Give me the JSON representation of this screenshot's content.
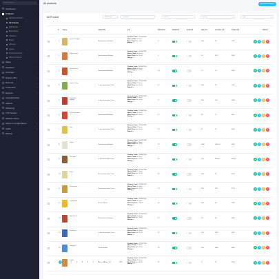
{
  "sidebar": {
    "search_placeholder": "Search in menu...",
    "items": [
      {
        "label": "Dashboard",
        "arrow": ""
      },
      {
        "label": "Products",
        "arrow": "›",
        "active": true
      },
      {
        "label": "Sales",
        "arrow": "›"
      },
      {
        "label": "Suppliers",
        "arrow": "›"
      },
      {
        "label": "Purchase",
        "arrow": "›"
      },
      {
        "label": "Delivery Boy",
        "arrow": "›"
      },
      {
        "label": "Refunds",
        "arrow": "›"
      },
      {
        "label": "Customers",
        "arrow": "›"
      },
      {
        "label": "Reports",
        "arrow": "›"
      },
      {
        "label": "Uploaded Files",
        "arrow": ""
      },
      {
        "label": "Addons",
        "arrow": ""
      },
      {
        "label": "Marketing",
        "arrow": "›"
      },
      {
        "label": "OTP System",
        "arrow": "›"
      },
      {
        "label": "Website Setup",
        "arrow": "›"
      },
      {
        "label": "Setup & Configurations",
        "arrow": "›"
      },
      {
        "label": "Staffs",
        "arrow": "›"
      },
      {
        "label": "Backup",
        "arrow": ""
      }
    ],
    "sub_items": [
      {
        "label": "Add New Product"
      },
      {
        "label": "All Products",
        "on": true
      },
      {
        "label": "Bulk Import"
      },
      {
        "label": "Bulk Export"
      },
      {
        "label": "Category"
      },
      {
        "label": "Brand"
      },
      {
        "label": "Attribute"
      },
      {
        "label": "Colors"
      },
      {
        "label": "Product Reviews"
      },
      {
        "label": "Adjust Products"
      }
    ]
  },
  "header": {
    "breadcrumb": "All products",
    "add_button": "Add New Product"
  },
  "card": {
    "title": "All Product",
    "bulk_action": "Bulk Action",
    "category": "Category",
    "search": "Search",
    "sort": "Sort by",
    "type": "Type"
  },
  "columns": [
    "#",
    "Name",
    "Added By",
    "Info",
    "Total Stock",
    "Published",
    "Featured",
    "Sell price",
    "purchase unit",
    "Total worth",
    "Options"
  ],
  "info_labels": {
    "code": "Product Code:",
    "sale": "Num of Sale:",
    "base": "Base Price:",
    "rating": "Rating:"
  },
  "rows": [
    {
      "no": "1",
      "name": "Instant noodles",
      "added_by": "Ask Hurmaiz Rehman",
      "code": "1234567891",
      "sale": "0 Times",
      "base": "Rs. 4.00",
      "rating": "0",
      "stock": "0",
      "published": true,
      "featured": false,
      "sell": "200",
      "purchase": "20",
      "worth": "1000",
      "color": "#d9b36a"
    },
    {
      "no": "2",
      "name": "Potato chips",
      "added_by": "Ask Hurmaiz Rehman",
      "code": "1234567892",
      "sale": "0 Times",
      "base": "Rs. 80.00",
      "rating": "0",
      "stock": "0",
      "published": true,
      "featured": false,
      "sell": "50",
      "purchase": "20.5",
      "worth": "1000",
      "color": "#d97a3a"
    },
    {
      "no": "3",
      "name": "Basmati rice",
      "added_by": "Ask Hurmaiz Rehman",
      "code": "1234567893",
      "sale": "0 Times",
      "base": "Rs. 75.00",
      "rating": "0",
      "stock": "18",
      "published": true,
      "featured": false,
      "sell": "10",
      "purchase": "20",
      "worth": "1800",
      "color": "#c4552d"
    },
    {
      "no": "4",
      "name": "Green chilies",
      "added_by": "a one kiain aafan Oona",
      "code": "1234567894",
      "sale": "0 Times",
      "base": "Rs. 80.00",
      "rating": "0",
      "stock": "17",
      "published": true,
      "featured": false,
      "sell": "105",
      "purchase": "20",
      "worth": "1000",
      "color": "#7fae4a"
    },
    {
      "no": "5",
      "name": "Red chilli powder",
      "added_by": "a one kiain aafan Oona",
      "code": "1234567895",
      "sale": "0 Times",
      "base": "Rs. 40.00",
      "rating": "0",
      "stock": "17",
      "published": true,
      "featured": false,
      "sell": "200",
      "purchase": "120",
      "worth": "2300",
      "color": "#c53a2e"
    },
    {
      "no": "6",
      "name": "Fresh tomatoes",
      "added_by": "Ask Hurmaiz Rehman",
      "code": "1234567896",
      "sale": "0 Times",
      "base": "Rs. 80.00",
      "rating": "0",
      "stock": "12",
      "published": true,
      "featured": false,
      "sell": "80",
      "purchase": "71",
      "worth": "600",
      "color": "#d2463a"
    },
    {
      "no": "7",
      "name": "Salt",
      "added_by": "a one kiain aafan Oona",
      "code": "1234567897",
      "sale": "0 Times",
      "base": "Rs. 80.00",
      "rating": "0",
      "stock": "19",
      "published": true,
      "featured": false,
      "sell": "42",
      "purchase": "23",
      "worth": "4200",
      "color": "#e0c24a"
    },
    {
      "no": "8",
      "name": "Sugar",
      "added_by": "Ask Hurmaiz Rehman",
      "code": "1234567898",
      "sale": "0 Times",
      "base": "Rs. 52.00",
      "rating": "0",
      "stock": "20",
      "published": true,
      "featured": false,
      "sell": "1500",
      "purchase": "2000.00",
      "worth": "2000",
      "color": "#e6e0cf"
    },
    {
      "no": "9",
      "name": "Tea bags",
      "added_by": "a one kiain aafan Oona",
      "code": "1234567899",
      "sale": "0 Times",
      "base": "Rs. 50.00",
      "rating": "0",
      "stock": "25",
      "published": true,
      "featured": false,
      "sell": "700",
      "purchase": "300.00",
      "worth": "45000",
      "color": "#8b5e34"
    },
    {
      "no": "10",
      "name": "Flour",
      "added_by": "A one kiain aafan Oona",
      "code": "1234567900",
      "sale": "0 Times",
      "base": "Rs. 40.00",
      "rating": "0",
      "stock": "25",
      "published": true,
      "featured": false,
      "sell": "230",
      "purchase": "11",
      "worth": "2700",
      "color": "#e2d39c"
    },
    {
      "no": "11",
      "name": "Tea biscuits",
      "added_by": "A one kiain aafan Oona",
      "code": "1234567901",
      "sale": "0 Times",
      "base": "Rs. 40.00",
      "rating": "0",
      "stock": "14",
      "published": true,
      "featured": false,
      "sell": "200",
      "purchase": "250",
      "worth": "2750",
      "color": "#c99a3e"
    },
    {
      "no": "12",
      "name": "Cooking oil",
      "added_by": "A one dehmo",
      "code": "1234567902",
      "sale": "0 Times",
      "base": "Rs. 100.00",
      "rating": "0",
      "stock": "16",
      "published": true,
      "featured": false,
      "sell": "240",
      "purchase": "40",
      "worth": "2400",
      "color": "#efb52c"
    },
    {
      "no": "13",
      "name": "Masala mix",
      "added_by": "Ask Hurmaiz Rehman",
      "code": "1234567903",
      "sale": "0 Times",
      "base": "Rs. 45.00",
      "rating": "0",
      "stock": "15",
      "published": true,
      "featured": false,
      "sell": "18",
      "purchase": "30",
      "worth": "1000",
      "color": "#b54a34"
    },
    {
      "no": "14",
      "name": "Detergent",
      "added_by": "a one kiain aafan Oona",
      "code": "1234567904",
      "sale": "0 Times",
      "base": "Rs. 80.00",
      "rating": "0",
      "stock": "22",
      "published": true,
      "featured": false,
      "sell": "100",
      "purchase": "2050",
      "worth": "5000",
      "color": "#3a6bc4"
    },
    {
      "no": "15",
      "name": "Soap bar",
      "added_by": "Super dehmo",
      "code": "1234567905",
      "sale": "0 Times",
      "base": "Rs. 80.00",
      "rating": "0",
      "stock": "23",
      "published": true,
      "featured": false,
      "sell": "100",
      "purchase": "5650",
      "worth": "6900",
      "color": "#4a8fd2"
    },
    {
      "no": "16",
      "name": "Lentils",
      "added_by": "Super dehmo",
      "code": "1234567906",
      "sale": "0 Times",
      "base": "Rs. 80.00",
      "rating": "0",
      "stock": "22",
      "published": true,
      "featured": false,
      "sell": "11",
      "purchase": "11",
      "worth": "1500",
      "color": "#d68a3a"
    }
  ],
  "pagination": [
    "‹",
    "1",
    "2",
    "3",
    "4",
    "5",
    "6",
    "7",
    "8",
    "9",
    "10",
    "...",
    "240",
    "›"
  ],
  "colors": {
    "accent": "#25bcf1",
    "published_on": "#14b892",
    "sidebar_bg": "#1e2230"
  }
}
